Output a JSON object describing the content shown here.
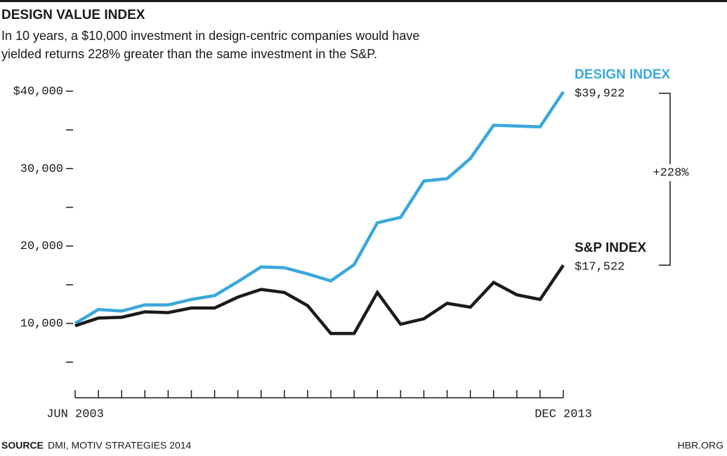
{
  "chart_data": {
    "type": "line",
    "title": "DESIGN VALUE INDEX",
    "subtitle": [
      "In 10 years, a $10,000 investment in design-centric companies would have",
      "yielded returns 228% greater than the same investment in the S&P."
    ],
    "categories": [
      "JUN 2003",
      null,
      null,
      null,
      null,
      null,
      null,
      null,
      null,
      null,
      null,
      null,
      null,
      null,
      null,
      null,
      null,
      null,
      null,
      null,
      null,
      "DEC 2013"
    ],
    "series": [
      {
        "name": "DESIGN INDEX",
        "color": "#3aa8dc",
        "values": [
          10000,
          11800,
          11600,
          12400,
          12400,
          13100,
          13600,
          15400,
          17300,
          17200,
          16400,
          15500,
          17600,
          23000,
          23700,
          28400,
          28700,
          31300,
          35600,
          35500,
          35400,
          39922
        ],
        "value_labels": [
          null,
          null,
          null,
          null,
          null,
          null,
          null,
          null,
          null,
          null,
          null,
          null,
          null,
          null,
          null,
          null,
          null,
          null,
          null,
          null,
          null,
          "$39,922"
        ]
      },
      {
        "name": "S&P INDEX",
        "color": "#1a1a1a",
        "values": [
          9700,
          10700,
          10800,
          11500,
          11400,
          12000,
          12000,
          13400,
          14400,
          14000,
          12300,
          8700,
          8700,
          14000,
          9900,
          10600,
          12600,
          12100,
          15300,
          13700,
          13100,
          17522
        ],
        "value_labels": [
          null,
          null,
          null,
          null,
          null,
          null,
          null,
          null,
          null,
          null,
          null,
          null,
          null,
          null,
          null,
          null,
          null,
          null,
          null,
          null,
          null,
          "$17,522"
        ]
      }
    ],
    "ylim": [
      0,
      40000
    ],
    "yticks": [
      {
        "value": 10000,
        "label": "10,000"
      },
      {
        "value": 20000,
        "label": "20,000"
      },
      {
        "value": 30000,
        "label": "30,000"
      },
      {
        "value": 40000,
        "label": "$40,000"
      }
    ],
    "yminorticks": [
      5000,
      15000,
      25000,
      35000
    ],
    "annotation": "+228%",
    "source_label": "SOURCE",
    "source": "DMI, MOTIV STRATEGIES 2014",
    "credit": "HBR.ORG"
  }
}
